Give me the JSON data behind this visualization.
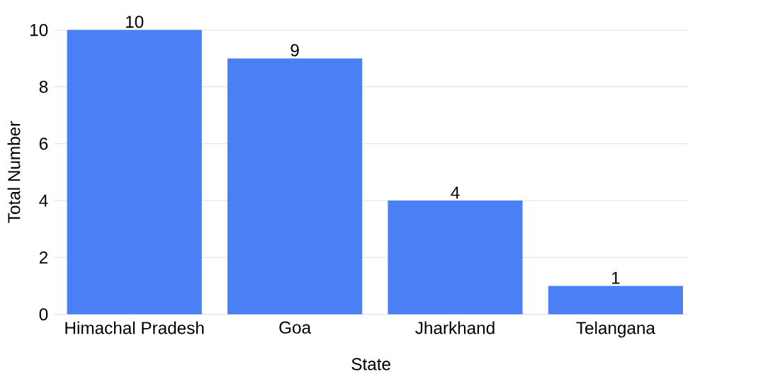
{
  "chart_data": {
    "type": "bar",
    "xlabel": "State",
    "ylabel": "Total Number",
    "categories": [
      "Himachal Pradesh",
      "Goa",
      "Jharkhand",
      "Telangana"
    ],
    "values": [
      10,
      9,
      4,
      1
    ],
    "color": "#4a7ff5",
    "ylim": [
      0,
      10
    ],
    "yticks": [
      0,
      2,
      4,
      6,
      8,
      10
    ],
    "grid": "y",
    "data_labels": true
  }
}
